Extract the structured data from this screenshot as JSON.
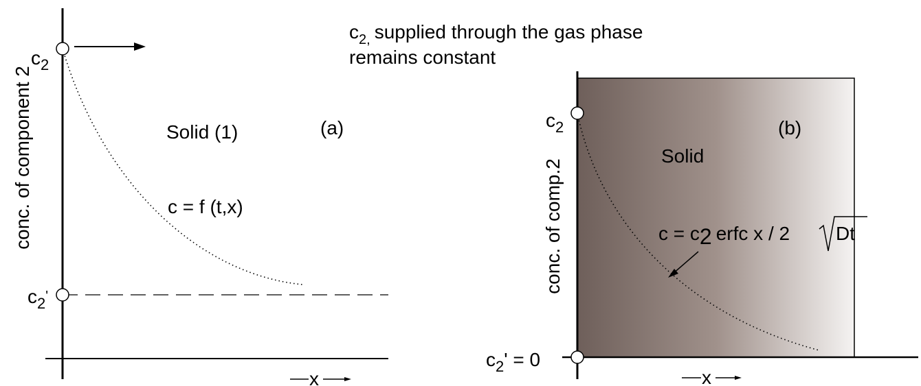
{
  "header": {
    "line1_symbol": "c",
    "line1_subscript": "2,",
    "line1_rest": "supplied through the gas phase",
    "line2": "remains constant"
  },
  "panel_a": {
    "tag": "(a)",
    "ylabel": "conc. of component 2",
    "xlabel": "x",
    "region_label": "Solid (1)",
    "equation": "c = f (t,x)",
    "top_marker_symbol": "c",
    "top_marker_subscript": "2",
    "bottom_marker_symbol": "c",
    "bottom_marker_subscript": "2",
    "bottom_marker_prime": "'"
  },
  "panel_b": {
    "tag": "(b)",
    "ylabel": "conc. of comp.2",
    "xlabel": "x",
    "region_label": "Solid",
    "equation_lhs": "c = c",
    "equation_sub": "2",
    "equation_mid": "erfc x / 2",
    "equation_radicand": "Dt",
    "top_marker_symbol": "c",
    "top_marker_subscript": "2",
    "bottom_marker_symbol": "c",
    "bottom_marker_subscript": "2",
    "bottom_marker_suffix": "' = 0",
    "gradient": {
      "dark": "#6e5f5a",
      "mid": "#a0918b",
      "light": "#f5f3f2"
    }
  }
}
